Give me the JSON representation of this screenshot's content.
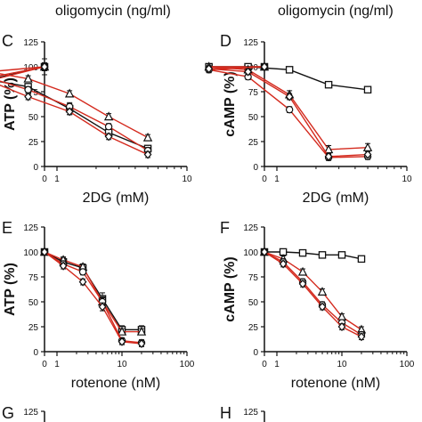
{
  "header": {
    "left_label": "oligomycin (ng/ml)",
    "right_label": "oligomycin (ng/ml)"
  },
  "colors": {
    "black": "#111111",
    "red": "#d42a1e"
  },
  "chart_data": [
    {
      "panel": "C",
      "type": "line",
      "xlabel": "2DG (mM)",
      "ylabel": "ATP (%)",
      "xscale": "log-with-zero",
      "xlim": [
        0,
        10
      ],
      "ylim": [
        0,
        125
      ],
      "xticks": [
        "0",
        "1",
        "10"
      ],
      "yticks": [
        0,
        25,
        50,
        75,
        100,
        125
      ],
      "x": [
        0,
        0.3,
        0.6,
        1.25,
        2.5,
        5
      ],
      "series": [
        {
          "marker": "square",
          "color": "black",
          "values": [
            100,
            87,
            80,
            58,
            34,
            18
          ],
          "err": [
            8,
            3,
            3,
            6,
            3,
            3
          ]
        },
        {
          "marker": "triangle",
          "color": "red",
          "values": [
            100,
            95,
            88,
            73,
            50,
            29
          ],
          "err": [
            4,
            3,
            3,
            3,
            3,
            3
          ]
        },
        {
          "marker": "circle",
          "color": "red",
          "values": [
            100,
            89,
            77,
            60,
            40,
            16
          ],
          "err": [
            4,
            3,
            3,
            3,
            3,
            3
          ]
        },
        {
          "marker": "diamond",
          "color": "red",
          "values": [
            100,
            86,
            70,
            55,
            30,
            12
          ],
          "err": [
            4,
            3,
            3,
            3,
            3,
            3
          ]
        }
      ]
    },
    {
      "panel": "D",
      "type": "line",
      "xlabel": "2DG (mM)",
      "ylabel": "cAMP (%)",
      "xscale": "log-with-zero",
      "xlim": [
        0,
        10
      ],
      "ylim": [
        0,
        125
      ],
      "xticks": [
        "0",
        "1",
        "10"
      ],
      "yticks": [
        0,
        25,
        50,
        75,
        100,
        125
      ],
      "x": [
        0,
        0.3,
        0.6,
        1.25,
        2.5,
        5
      ],
      "series": [
        {
          "marker": "square",
          "color": "black",
          "values": [
            100,
            100,
            100,
            97,
            82,
            77
          ],
          "err": [
            2,
            2,
            2,
            2,
            2,
            2
          ]
        },
        {
          "marker": "triangle",
          "color": "red",
          "values": [
            100,
            100,
            97,
            72,
            17,
            19
          ],
          "err": [
            3,
            3,
            3,
            4,
            4,
            4
          ]
        },
        {
          "marker": "circle",
          "color": "red",
          "values": [
            100,
            97,
            90,
            57,
            9,
            10
          ],
          "err": [
            3,
            3,
            3,
            3,
            3,
            3
          ]
        },
        {
          "marker": "diamond",
          "color": "red",
          "values": [
            100,
            98,
            95,
            70,
            10,
            12
          ],
          "err": [
            3,
            3,
            3,
            3,
            3,
            3
          ]
        }
      ]
    },
    {
      "panel": "E",
      "type": "line",
      "xlabel": "rotenone (nM)",
      "ylabel": "ATP (%)",
      "xscale": "log-with-zero",
      "xlim": [
        0,
        100
      ],
      "ylim": [
        0,
        125
      ],
      "xticks": [
        "0",
        "1",
        "10",
        "100"
      ],
      "yticks": [
        0,
        25,
        50,
        75,
        100,
        125
      ],
      "x": [
        0,
        1.25,
        2.5,
        5,
        10,
        20
      ],
      "series": [
        {
          "marker": "square",
          "color": "black",
          "values": [
            100,
            90,
            84,
            53,
            22,
            22
          ],
          "err": [
            3,
            4,
            4,
            6,
            4,
            4
          ]
        },
        {
          "marker": "triangle",
          "color": "red",
          "values": [
            100,
            92,
            85,
            50,
            20,
            20
          ],
          "err": [
            3,
            3,
            3,
            5,
            3,
            3
          ]
        },
        {
          "marker": "circle",
          "color": "red",
          "values": [
            100,
            88,
            80,
            50,
            11,
            9
          ],
          "err": [
            3,
            3,
            3,
            4,
            3,
            3
          ]
        },
        {
          "marker": "diamond",
          "color": "red",
          "values": [
            100,
            86,
            70,
            45,
            10,
            8
          ],
          "err": [
            3,
            3,
            3,
            4,
            3,
            3
          ]
        }
      ]
    },
    {
      "panel": "F",
      "type": "line",
      "xlabel": "rotenone (nM)",
      "ylabel": "cAMP (%)",
      "xscale": "log-with-zero",
      "xlim": [
        0,
        100
      ],
      "ylim": [
        0,
        125
      ],
      "xticks": [
        "0",
        "1",
        "10",
        "100"
      ],
      "yticks": [
        0,
        25,
        50,
        75,
        100,
        125
      ],
      "x": [
        0,
        1.25,
        2.5,
        5,
        10,
        20
      ],
      "series": [
        {
          "marker": "square",
          "color": "black",
          "values": [
            100,
            100,
            99,
            97,
            97,
            93
          ],
          "err": [
            2,
            2,
            2,
            2,
            2,
            2
          ]
        },
        {
          "marker": "triangle",
          "color": "red",
          "values": [
            100,
            93,
            80,
            60,
            35,
            22
          ],
          "err": [
            3,
            3,
            3,
            3,
            3,
            3
          ]
        },
        {
          "marker": "circle",
          "color": "red",
          "values": [
            100,
            90,
            70,
            47,
            29,
            17
          ],
          "err": [
            3,
            3,
            3,
            3,
            3,
            3
          ]
        },
        {
          "marker": "diamond",
          "color": "red",
          "values": [
            100,
            88,
            68,
            45,
            25,
            15
          ],
          "err": [
            3,
            3,
            3,
            3,
            3,
            3
          ]
        }
      ]
    }
  ],
  "partial_panels": [
    {
      "letter": "G",
      "tick": "125"
    },
    {
      "letter": "H",
      "tick": "125"
    }
  ]
}
